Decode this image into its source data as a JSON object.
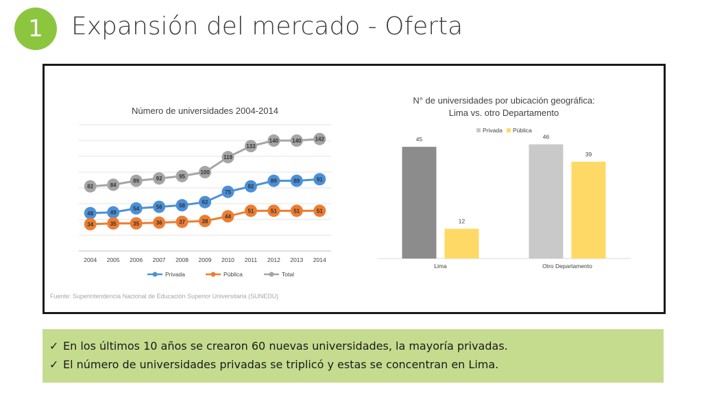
{
  "slide": {
    "number": "1",
    "title": "Expansión del mercado - Oferta",
    "source": "Fuente: Superintendencia Nacional de Educación Superior Universitaria (SUNEDU)",
    "notes": [
      "En los últimos 10 años se crearon 60 nuevas universidades, la mayoría privadas.",
      "El número de universidades privadas se triplicó y estas se concentran en Lima."
    ],
    "check_icon": "check-icon"
  },
  "chart_data": [
    {
      "type": "line",
      "title": "Número de universidades 2004-2014",
      "x": [
        "2004",
        "2005",
        "2006",
        "2007",
        "2008",
        "2009",
        "2010",
        "2011",
        "2012",
        "2013",
        "2014"
      ],
      "series": [
        {
          "name": "Privada",
          "values": [
            48,
            49,
            54,
            56,
            58,
            62,
            75,
            82,
            89,
            89,
            91
          ],
          "color": "#4a90d9"
        },
        {
          "name": "Pública",
          "values": [
            34,
            35,
            35,
            36,
            37,
            38,
            44,
            51,
            51,
            51,
            51
          ],
          "color": "#ed7d31"
        },
        {
          "name": "Total",
          "values": [
            82,
            84,
            89,
            92,
            95,
            100,
            119,
            133,
            140,
            140,
            142
          ],
          "color": "#a5a5a5"
        }
      ],
      "ylim": [
        0,
        160
      ],
      "grid": true,
      "legend": "bottom"
    },
    {
      "type": "bar",
      "title_lines": [
        "N° de universidades por ubicación geográfica:",
        "Lima vs. otro Departamento"
      ],
      "categories": [
        "Lima",
        "Otro Departamento"
      ],
      "series": [
        {
          "name": "Privada",
          "values": [
            45,
            46
          ],
          "colors": [
            "#8c8c8c",
            "#c9c9c9"
          ],
          "legend_color": "#c9c9c9"
        },
        {
          "name": "Pública",
          "values": [
            12,
            39
          ],
          "colors": [
            "#ffd966",
            "#ffd966"
          ],
          "legend_color": "#ffd966"
        }
      ],
      "ylim": [
        0,
        50
      ],
      "legend": "top"
    }
  ]
}
